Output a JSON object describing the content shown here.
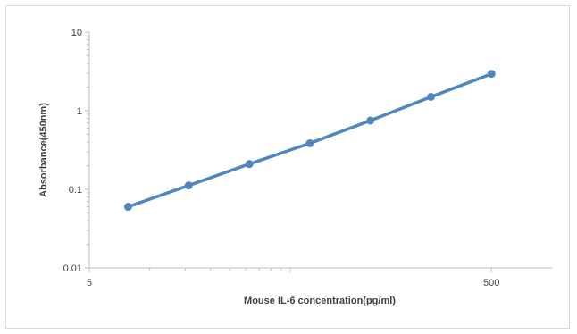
{
  "chart_data": {
    "type": "line",
    "xlabel": "Mouse IL-6 concentration(pg/ml)",
    "ylabel": "Absorbance(450nm)",
    "x_scale": "log",
    "y_scale": "log",
    "xlim": [
      5,
      1000
    ],
    "ylim": [
      0.01,
      10
    ],
    "x_tick_labels": [
      {
        "value": 5,
        "label": "5"
      },
      {
        "value": 500,
        "label": "500"
      }
    ],
    "y_tick_labels": [
      {
        "value": 10,
        "label": "10"
      },
      {
        "value": 1,
        "label": "1"
      },
      {
        "value": 0.1,
        "label": "0.1"
      },
      {
        "value": 0.01,
        "label": "0.01"
      }
    ],
    "grid": false,
    "legend": "none",
    "series": [
      {
        "color": "#4f86c0",
        "x": [
          7.8,
          15.6,
          31.25,
          62.5,
          125,
          250,
          500
        ],
        "y": [
          0.06,
          0.112,
          0.21,
          0.385,
          0.75,
          1.5,
          2.95
        ]
      }
    ]
  }
}
